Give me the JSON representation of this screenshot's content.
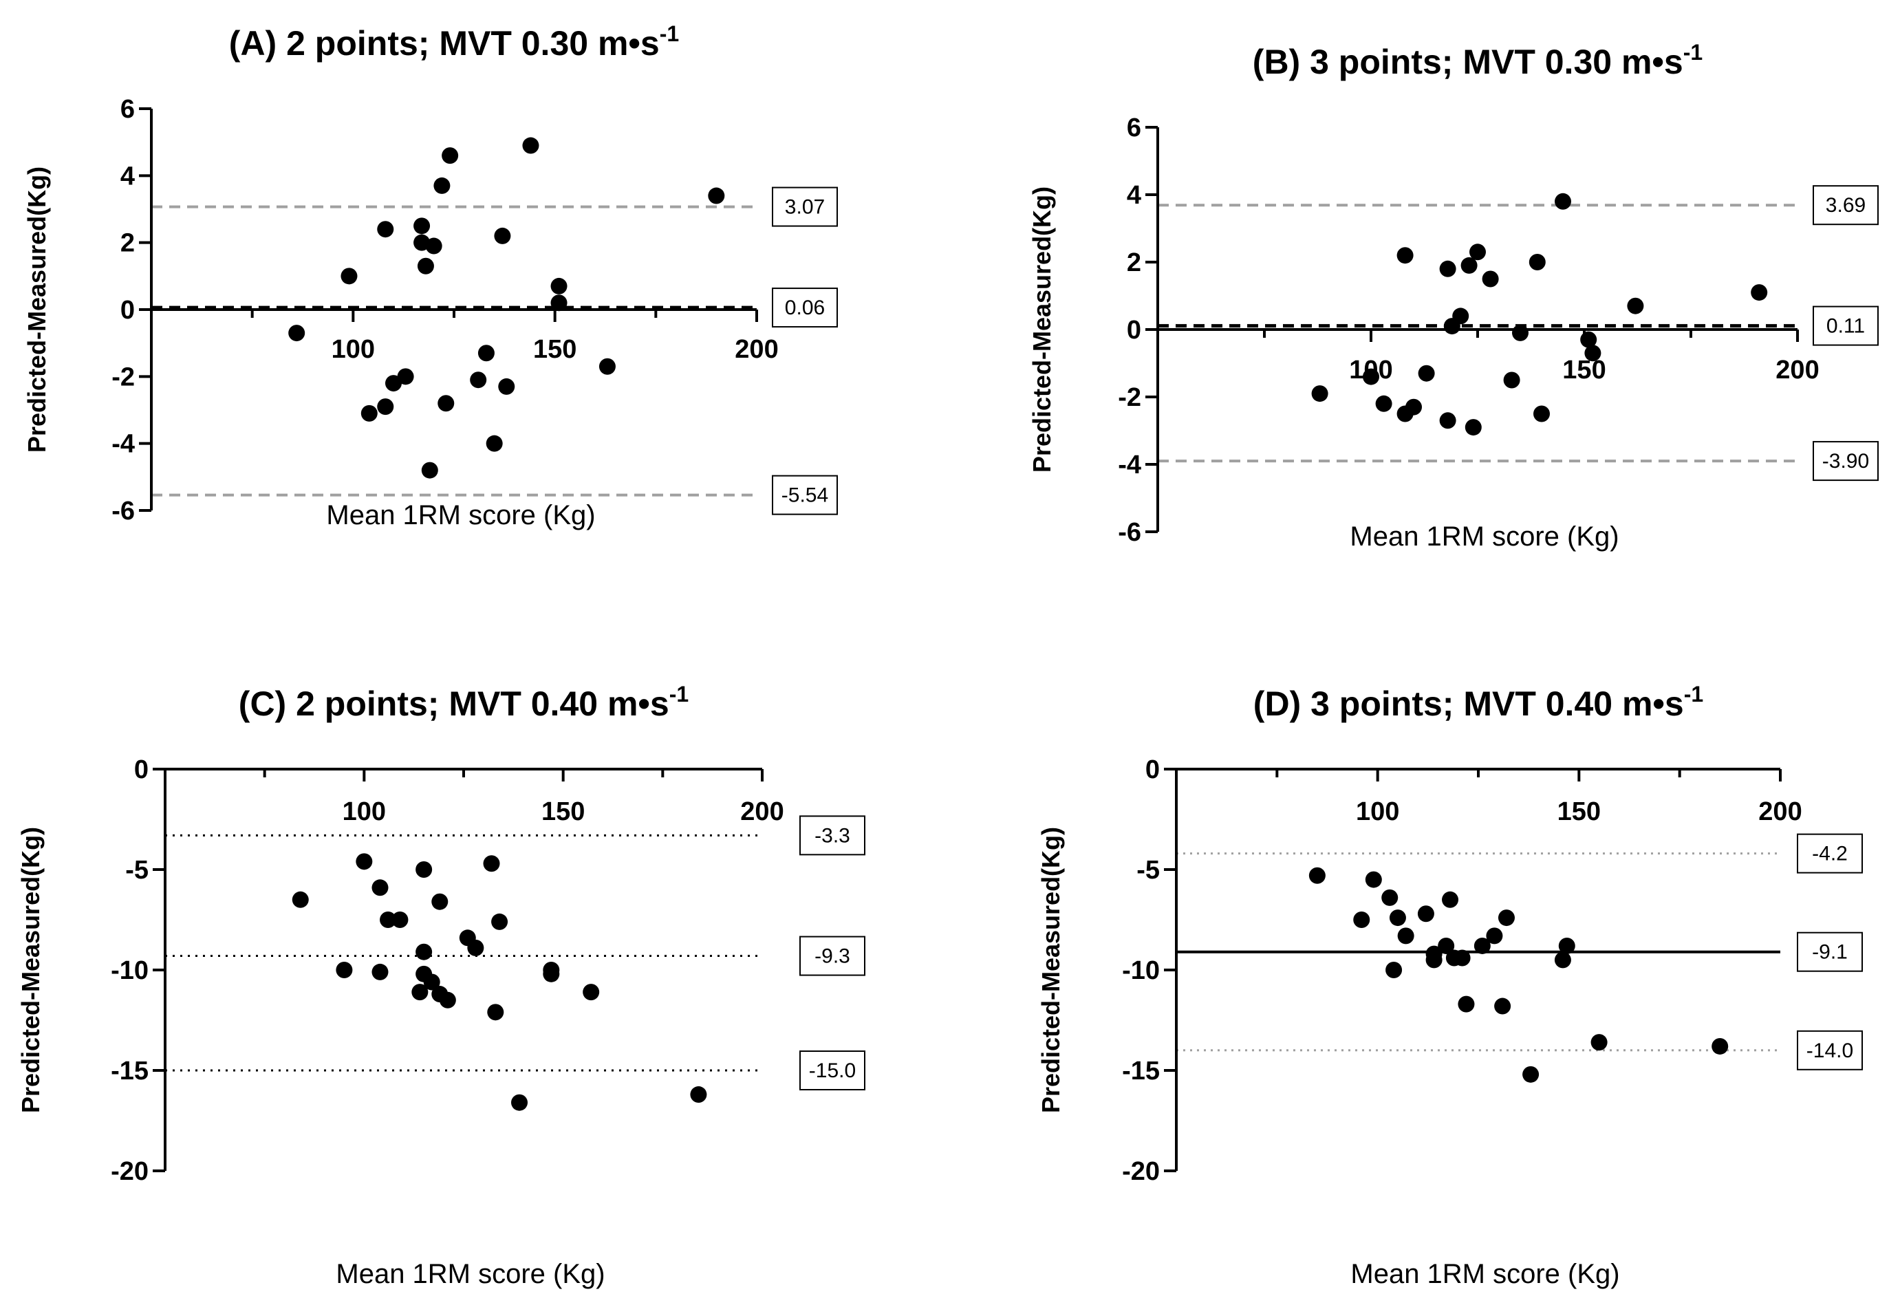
{
  "figure": {
    "colors": {
      "points": "#000000",
      "axis": "#000000",
      "dashed_gray": "#a0a0a0",
      "dotted_black": "#000000",
      "dotted_gray": "#a0a0a0"
    }
  },
  "chart_data": [
    {
      "id": "A",
      "type": "scatter",
      "title": "(A) 2 points; MVT 0.30 m•s",
      "title_superscript": "-1",
      "xlabel": "Mean 1RM score (Kg)",
      "ylabel": "Predicted-Measured(Kg)",
      "xlim": [
        50,
        200
      ],
      "ylim": [
        -6,
        6
      ],
      "xticks": [
        100,
        150,
        200
      ],
      "yticks": [
        -6,
        -4,
        -2,
        0,
        2,
        4,
        6
      ],
      "grid": false,
      "reference_lines": [
        {
          "name": "upper_loa",
          "value": 3.07,
          "label": "3.07",
          "style": "dashed-gray"
        },
        {
          "name": "bias",
          "value": 0.06,
          "label": "0.06",
          "style": "dashed-black"
        },
        {
          "name": "lower_loa",
          "value": -5.54,
          "label": "-5.54",
          "style": "dashed-gray"
        }
      ],
      "points": [
        [
          86,
          -0.7
        ],
        [
          99,
          1.0
        ],
        [
          104,
          -3.1
        ],
        [
          108,
          -2.9
        ],
        [
          108,
          2.4
        ],
        [
          110,
          -2.2
        ],
        [
          113,
          -2.0
        ],
        [
          117,
          2.5
        ],
        [
          117,
          2.0
        ],
        [
          118,
          1.3
        ],
        [
          119,
          -4.8
        ],
        [
          120,
          1.9
        ],
        [
          122,
          3.7
        ],
        [
          123,
          -2.8
        ],
        [
          124,
          4.6
        ],
        [
          131,
          -2.1
        ],
        [
          133,
          -1.3
        ],
        [
          135,
          -4.0
        ],
        [
          137,
          2.2
        ],
        [
          138,
          -2.3
        ],
        [
          144,
          4.9
        ],
        [
          151,
          0.7
        ],
        [
          151,
          0.2
        ],
        [
          163,
          -1.7
        ],
        [
          190,
          3.4
        ]
      ]
    },
    {
      "id": "B",
      "type": "scatter",
      "title": "(B) 3 points; MVT 0.30 m•s",
      "title_superscript": "-1",
      "xlabel": "Mean 1RM score (Kg)",
      "ylabel": "Predicted-Measured(Kg)",
      "xlim": [
        50,
        200
      ],
      "ylim": [
        -6,
        6
      ],
      "xticks": [
        100,
        150,
        200
      ],
      "yticks": [
        -6,
        -4,
        -2,
        0,
        2,
        4,
        6
      ],
      "grid": false,
      "reference_lines": [
        {
          "name": "upper_loa",
          "value": 3.69,
          "label": "3.69",
          "style": "dashed-gray"
        },
        {
          "name": "bias",
          "value": 0.11,
          "label": "0.11",
          "style": "dashed-black"
        },
        {
          "name": "lower_loa",
          "value": -3.9,
          "label": "-3.90",
          "style": "dashed-gray"
        }
      ],
      "points": [
        [
          88,
          -1.9
        ],
        [
          100,
          -1.4
        ],
        [
          103,
          -2.2
        ],
        [
          108,
          -2.5
        ],
        [
          108,
          2.2
        ],
        [
          110,
          -2.3
        ],
        [
          113,
          -1.3
        ],
        [
          118,
          -2.7
        ],
        [
          118,
          1.8
        ],
        [
          119,
          0.1
        ],
        [
          121,
          0.4
        ],
        [
          123,
          1.9
        ],
        [
          124,
          -2.9
        ],
        [
          125,
          2.3
        ],
        [
          128,
          1.5
        ],
        [
          133,
          -1.5
        ],
        [
          135,
          -0.1
        ],
        [
          139,
          2.0
        ],
        [
          140,
          -2.5
        ],
        [
          145,
          3.8
        ],
        [
          151,
          -0.3
        ],
        [
          152,
          -0.7
        ],
        [
          162,
          0.7
        ],
        [
          191,
          1.1
        ]
      ]
    },
    {
      "id": "C",
      "type": "scatter",
      "title": "(C) 2 points; MVT 0.40 m•s",
      "title_superscript": "-1",
      "xlabel": "Mean 1RM score (Kg)",
      "ylabel": "Predicted-Measured(Kg)",
      "xlim": [
        50,
        200
      ],
      "ylim": [
        -20,
        0
      ],
      "xticks": [
        100,
        150,
        200
      ],
      "yticks": [
        -20,
        -15,
        -10,
        -5,
        0
      ],
      "grid": false,
      "reference_lines": [
        {
          "name": "upper_loa",
          "value": -3.3,
          "label": "-3.3",
          "style": "dotted-black"
        },
        {
          "name": "bias",
          "value": -9.3,
          "label": "-9.3",
          "style": "dotted-black"
        },
        {
          "name": "lower_loa",
          "value": -15.0,
          "label": "-15.0",
          "style": "dotted-black"
        }
      ],
      "points": [
        [
          84,
          -6.5
        ],
        [
          95,
          -10.0
        ],
        [
          100,
          -4.6
        ],
        [
          104,
          -5.9
        ],
        [
          104,
          -10.1
        ],
        [
          106,
          -7.5
        ],
        [
          109,
          -7.5
        ],
        [
          114,
          -11.1
        ],
        [
          115,
          -5.0
        ],
        [
          115,
          -9.1
        ],
        [
          115,
          -10.2
        ],
        [
          117,
          -10.6
        ],
        [
          119,
          -6.6
        ],
        [
          119,
          -11.2
        ],
        [
          121,
          -11.5
        ],
        [
          126,
          -8.4
        ],
        [
          128,
          -8.9
        ],
        [
          132,
          -4.7
        ],
        [
          133,
          -12.1
        ],
        [
          134,
          -7.6
        ],
        [
          139,
          -16.6
        ],
        [
          147,
          -10.0
        ],
        [
          147,
          -10.2
        ],
        [
          157,
          -11.1
        ],
        [
          184,
          -16.2
        ]
      ]
    },
    {
      "id": "D",
      "type": "scatter",
      "title": "(D) 3 points; MVT 0.40 m•s",
      "title_superscript": "-1",
      "xlabel": "Mean 1RM score (Kg)",
      "ylabel": "Predicted-Measured(Kg)",
      "xlim": [
        50,
        200
      ],
      "ylim": [
        -20,
        0
      ],
      "xticks": [
        100,
        150,
        200
      ],
      "yticks": [
        -20,
        -15,
        -10,
        -5,
        0
      ],
      "grid": false,
      "reference_lines": [
        {
          "name": "upper_loa",
          "value": -4.2,
          "label": "-4.2",
          "style": "dotted-gray"
        },
        {
          "name": "bias",
          "value": -9.1,
          "label": "-9.1",
          "style": "solid-black"
        },
        {
          "name": "lower_loa",
          "value": -14.0,
          "label": "-14.0",
          "style": "dotted-gray"
        }
      ],
      "points": [
        [
          85,
          -5.3
        ],
        [
          96,
          -7.5
        ],
        [
          99,
          -5.5
        ],
        [
          103,
          -6.4
        ],
        [
          104,
          -10.0
        ],
        [
          105,
          -7.4
        ],
        [
          107,
          -8.3
        ],
        [
          112,
          -7.2
        ],
        [
          114,
          -9.5
        ],
        [
          114,
          -9.2
        ],
        [
          117,
          -8.8
        ],
        [
          118,
          -6.5
        ],
        [
          119,
          -9.4
        ],
        [
          121,
          -9.4
        ],
        [
          122,
          -11.7
        ],
        [
          126,
          -8.8
        ],
        [
          129,
          -8.3
        ],
        [
          131,
          -11.8
        ],
        [
          132,
          -7.4
        ],
        [
          138,
          -15.2
        ],
        [
          146,
          -9.5
        ],
        [
          147,
          -8.8
        ],
        [
          155,
          -13.6
        ],
        [
          185,
          -13.8
        ]
      ]
    }
  ]
}
